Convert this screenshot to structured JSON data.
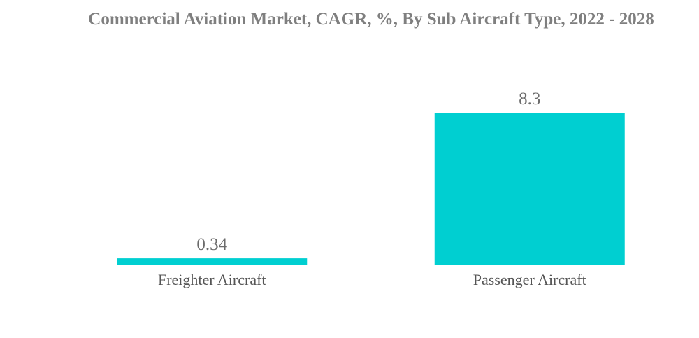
{
  "chart_data": {
    "type": "bar",
    "title": "Commercial Aviation Market, CAGR, %, By Sub Aircraft Type, 2022 - 2028",
    "categories": [
      "Freighter Aircraft",
      "Passenger Aircraft"
    ],
    "values": [
      0.34,
      8.3
    ],
    "value_labels": [
      "0.34",
      "8.3"
    ],
    "xlabel": "",
    "ylabel": "",
    "ylim": [
      0,
      8.3
    ],
    "grid": false,
    "legend": "none",
    "bar_color": "#00cfd1"
  }
}
